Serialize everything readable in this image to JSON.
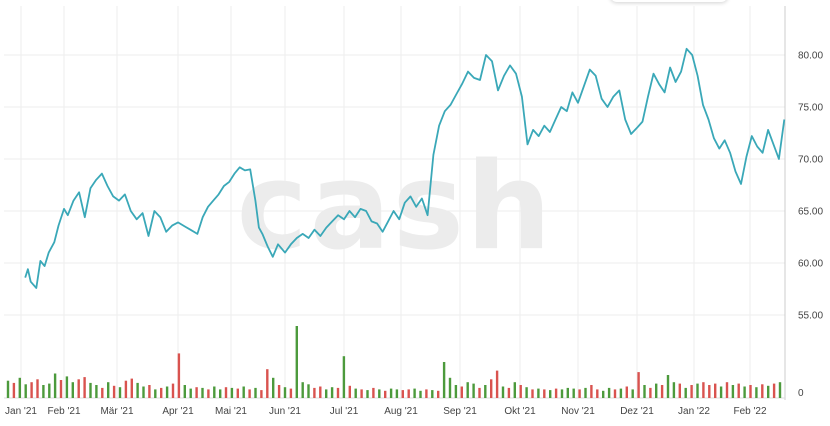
{
  "watermark": "cash",
  "chart_data": [
    {
      "type": "line",
      "x_axis": {
        "ticks": [
          "Jan '21",
          "Feb '21",
          "Mär '21",
          "Apr '21",
          "Mai '21",
          "Jun '21",
          "Jul '21",
          "Aug '21",
          "Sep '21",
          "Okt '21",
          "Nov '21",
          "Dez '21",
          "Jan '22",
          "Feb '22"
        ]
      },
      "y_axis": {
        "ticks": [
          "55.00",
          "60.00",
          "65.00",
          "70.00",
          "75.00",
          "80.00"
        ],
        "ylim": [
          52,
          83
        ],
        "position": "right"
      },
      "grid": true,
      "series": [
        {
          "color": "#3aa8b8",
          "points": [
            [
              "2021-01-04",
              58.6
            ],
            [
              "2021-01-06",
              59.4
            ],
            [
              "2021-01-08",
              58.2
            ],
            [
              "2021-01-12",
              57.6
            ],
            [
              "2021-01-15",
              60.2
            ],
            [
              "2021-01-18",
              59.7
            ],
            [
              "2021-01-21",
              61.0
            ],
            [
              "2021-01-25",
              62.0
            ],
            [
              "2021-01-28",
              63.6
            ],
            [
              "2021-02-01",
              65.2
            ],
            [
              "2021-02-03",
              64.6
            ],
            [
              "2021-02-06",
              66.0
            ],
            [
              "2021-02-09",
              66.8
            ],
            [
              "2021-02-12",
              64.4
            ],
            [
              "2021-02-15",
              67.2
            ],
            [
              "2021-02-18",
              68.0
            ],
            [
              "2021-02-21",
              68.6
            ],
            [
              "2021-02-24",
              67.4
            ],
            [
              "2021-02-27",
              66.4
            ],
            [
              "2021-03-02",
              66.0
            ],
            [
              "2021-03-05",
              66.6
            ],
            [
              "2021-03-08",
              65.0
            ],
            [
              "2021-03-11",
              64.2
            ],
            [
              "2021-03-14",
              64.8
            ],
            [
              "2021-03-17",
              62.6
            ],
            [
              "2021-03-20",
              65.0
            ],
            [
              "2021-03-23",
              64.4
            ],
            [
              "2021-03-26",
              63.0
            ],
            [
              "2021-03-29",
              63.6
            ],
            [
              "2021-04-01",
              63.9
            ],
            [
              "2021-04-05",
              63.5
            ],
            [
              "2021-04-08",
              63.2
            ],
            [
              "2021-04-12",
              62.8
            ],
            [
              "2021-04-15",
              64.4
            ],
            [
              "2021-04-18",
              65.4
            ],
            [
              "2021-04-21",
              66.0
            ],
            [
              "2021-04-24",
              66.6
            ],
            [
              "2021-04-27",
              67.4
            ],
            [
              "2021-04-30",
              67.8
            ],
            [
              "2021-05-03",
              68.6
            ],
            [
              "2021-05-06",
              69.2
            ],
            [
              "2021-05-09",
              68.9
            ],
            [
              "2021-05-12",
              69.0
            ],
            [
              "2021-05-15",
              66.0
            ],
            [
              "2021-05-17",
              63.4
            ],
            [
              "2021-05-19",
              62.8
            ],
            [
              "2021-05-22",
              61.6
            ],
            [
              "2021-05-25",
              60.6
            ],
            [
              "2021-05-28",
              61.8
            ],
            [
              "2021-06-01",
              61.0
            ],
            [
              "2021-06-04",
              61.8
            ],
            [
              "2021-06-07",
              62.4
            ],
            [
              "2021-06-10",
              62.8
            ],
            [
              "2021-06-13",
              62.4
            ],
            [
              "2021-06-16",
              63.2
            ],
            [
              "2021-06-19",
              62.6
            ],
            [
              "2021-06-22",
              63.4
            ],
            [
              "2021-06-25",
              64.0
            ],
            [
              "2021-06-28",
              64.6
            ],
            [
              "2021-07-01",
              64.2
            ],
            [
              "2021-07-04",
              65.0
            ],
            [
              "2021-07-07",
              64.4
            ],
            [
              "2021-07-10",
              65.2
            ],
            [
              "2021-07-13",
              65.0
            ],
            [
              "2021-07-16",
              64.0
            ],
            [
              "2021-07-19",
              63.8
            ],
            [
              "2021-07-22",
              63.0
            ],
            [
              "2021-07-25",
              64.0
            ],
            [
              "2021-07-28",
              65.0
            ],
            [
              "2021-07-31",
              64.2
            ],
            [
              "2021-08-03",
              65.8
            ],
            [
              "2021-08-06",
              66.4
            ],
            [
              "2021-08-09",
              65.4
            ],
            [
              "2021-08-12",
              66.2
            ],
            [
              "2021-08-15",
              64.6
            ],
            [
              "2021-08-18",
              70.4
            ],
            [
              "2021-08-21",
              73.2
            ],
            [
              "2021-08-24",
              74.6
            ],
            [
              "2021-08-27",
              75.2
            ],
            [
              "2021-08-30",
              76.2
            ],
            [
              "2021-09-02",
              77.2
            ],
            [
              "2021-09-05",
              78.4
            ],
            [
              "2021-09-08",
              77.8
            ],
            [
              "2021-09-11",
              77.6
            ],
            [
              "2021-09-14",
              80.0
            ],
            [
              "2021-09-17",
              79.4
            ],
            [
              "2021-09-20",
              76.6
            ],
            [
              "2021-09-23",
              78.0
            ],
            [
              "2021-09-26",
              79.0
            ],
            [
              "2021-09-29",
              78.2
            ],
            [
              "2021-10-02",
              76.0
            ],
            [
              "2021-10-05",
              71.4
            ],
            [
              "2021-10-08",
              72.8
            ],
            [
              "2021-10-11",
              72.2
            ],
            [
              "2021-10-14",
              73.2
            ],
            [
              "2021-10-17",
              72.6
            ],
            [
              "2021-10-20",
              73.8
            ],
            [
              "2021-10-23",
              75.0
            ],
            [
              "2021-10-26",
              74.6
            ],
            [
              "2021-10-29",
              76.4
            ],
            [
              "2021-11-01",
              75.4
            ],
            [
              "2021-11-04",
              77.0
            ],
            [
              "2021-11-07",
              78.6
            ],
            [
              "2021-11-10",
              78.0
            ],
            [
              "2021-11-13",
              75.8
            ],
            [
              "2021-11-16",
              75.0
            ],
            [
              "2021-11-19",
              76.0
            ],
            [
              "2021-11-22",
              76.6
            ],
            [
              "2021-11-25",
              73.8
            ],
            [
              "2021-11-28",
              72.4
            ],
            [
              "2021-12-01",
              73.0
            ],
            [
              "2021-12-04",
              73.6
            ],
            [
              "2021-12-07",
              76.0
            ],
            [
              "2021-12-10",
              78.2
            ],
            [
              "2021-12-13",
              77.2
            ],
            [
              "2021-12-16",
              76.4
            ],
            [
              "2021-12-19",
              78.8
            ],
            [
              "2021-12-22",
              77.4
            ],
            [
              "2021-12-25",
              78.4
            ],
            [
              "2021-12-28",
              80.6
            ],
            [
              "2021-12-31",
              80.0
            ],
            [
              "2022-01-03",
              78.0
            ],
            [
              "2022-01-06",
              75.2
            ],
            [
              "2022-01-09",
              73.8
            ],
            [
              "2022-01-12",
              72.0
            ],
            [
              "2022-01-15",
              71.0
            ],
            [
              "2022-01-18",
              71.8
            ],
            [
              "2022-01-21",
              70.6
            ],
            [
              "2022-01-24",
              68.8
            ],
            [
              "2022-01-27",
              67.6
            ],
            [
              "2022-01-30",
              70.2
            ],
            [
              "2022-02-02",
              72.2
            ],
            [
              "2022-02-05",
              71.2
            ],
            [
              "2022-02-08",
              70.6
            ],
            [
              "2022-02-11",
              72.8
            ],
            [
              "2022-02-14",
              71.4
            ],
            [
              "2022-02-17",
              70.0
            ],
            [
              "2022-02-20",
              73.8
            ]
          ]
        }
      ]
    },
    {
      "type": "bar",
      "y_axis": {
        "ticks": [
          "0"
        ],
        "position": "right"
      },
      "colors": {
        "up": "#4c9a3c",
        "down": "#d9534f"
      },
      "values": [
        [
          0.24,
          "up"
        ],
        [
          0.21,
          "down"
        ],
        [
          0.28,
          "up"
        ],
        [
          0.19,
          "up"
        ],
        [
          0.22,
          "down"
        ],
        [
          0.26,
          "down"
        ],
        [
          0.18,
          "up"
        ],
        [
          0.2,
          "up"
        ],
        [
          0.34,
          "up"
        ],
        [
          0.25,
          "down"
        ],
        [
          0.3,
          "up"
        ],
        [
          0.22,
          "up"
        ],
        [
          0.26,
          "down"
        ],
        [
          0.29,
          "down"
        ],
        [
          0.21,
          "up"
        ],
        [
          0.18,
          "up"
        ],
        [
          0.14,
          "down"
        ],
        [
          0.22,
          "up"
        ],
        [
          0.17,
          "down"
        ],
        [
          0.15,
          "up"
        ],
        [
          0.24,
          "down"
        ],
        [
          0.27,
          "down"
        ],
        [
          0.21,
          "up"
        ],
        [
          0.16,
          "up"
        ],
        [
          0.18,
          "down"
        ],
        [
          0.12,
          "up"
        ],
        [
          0.14,
          "down"
        ],
        [
          0.16,
          "up"
        ],
        [
          0.2,
          "down"
        ],
        [
          0.62,
          "down"
        ],
        [
          0.18,
          "up"
        ],
        [
          0.13,
          "up"
        ],
        [
          0.15,
          "down"
        ],
        [
          0.14,
          "up"
        ],
        [
          0.12,
          "down"
        ],
        [
          0.16,
          "up"
        ],
        [
          0.12,
          "up"
        ],
        [
          0.15,
          "down"
        ],
        [
          0.14,
          "up"
        ],
        [
          0.13,
          "down"
        ],
        [
          0.16,
          "up"
        ],
        [
          0.12,
          "down"
        ],
        [
          0.14,
          "up"
        ],
        [
          0.11,
          "down"
        ],
        [
          0.4,
          "down"
        ],
        [
          0.28,
          "up"
        ],
        [
          0.18,
          "down"
        ],
        [
          0.15,
          "up"
        ],
        [
          0.13,
          "down"
        ],
        [
          1.0,
          "up"
        ],
        [
          0.22,
          "up"
        ],
        [
          0.19,
          "up"
        ],
        [
          0.14,
          "down"
        ],
        [
          0.16,
          "down"
        ],
        [
          0.12,
          "up"
        ],
        [
          0.15,
          "up"
        ],
        [
          0.14,
          "down"
        ],
        [
          0.58,
          "up"
        ],
        [
          0.17,
          "down"
        ],
        [
          0.13,
          "up"
        ],
        [
          0.12,
          "down"
        ],
        [
          0.11,
          "up"
        ],
        [
          0.14,
          "down"
        ],
        [
          0.12,
          "up"
        ],
        [
          0.1,
          "down"
        ],
        [
          0.13,
          "up"
        ],
        [
          0.12,
          "up"
        ],
        [
          0.11,
          "down"
        ],
        [
          0.12,
          "down"
        ],
        [
          0.13,
          "up"
        ],
        [
          0.1,
          "up"
        ],
        [
          0.12,
          "down"
        ],
        [
          0.11,
          "up"
        ],
        [
          0.1,
          "down"
        ],
        [
          0.5,
          "up"
        ],
        [
          0.28,
          "up"
        ],
        [
          0.18,
          "up"
        ],
        [
          0.16,
          "down"
        ],
        [
          0.22,
          "up"
        ],
        [
          0.2,
          "up"
        ],
        [
          0.14,
          "down"
        ],
        [
          0.18,
          "up"
        ],
        [
          0.26,
          "down"
        ],
        [
          0.38,
          "down"
        ],
        [
          0.16,
          "up"
        ],
        [
          0.14,
          "down"
        ],
        [
          0.22,
          "up"
        ],
        [
          0.18,
          "down"
        ],
        [
          0.15,
          "up"
        ],
        [
          0.12,
          "down"
        ],
        [
          0.13,
          "up"
        ],
        [
          0.12,
          "down"
        ],
        [
          0.11,
          "up"
        ],
        [
          0.13,
          "down"
        ],
        [
          0.12,
          "up"
        ],
        [
          0.14,
          "up"
        ],
        [
          0.13,
          "up"
        ],
        [
          0.12,
          "down"
        ],
        [
          0.14,
          "up"
        ],
        [
          0.18,
          "down"
        ],
        [
          0.12,
          "down"
        ],
        [
          0.1,
          "up"
        ],
        [
          0.14,
          "up"
        ],
        [
          0.12,
          "down"
        ],
        [
          0.13,
          "up"
        ],
        [
          0.16,
          "down"
        ],
        [
          0.12,
          "up"
        ],
        [
          0.36,
          "down"
        ],
        [
          0.18,
          "up"
        ],
        [
          0.14,
          "down"
        ],
        [
          0.2,
          "up"
        ],
        [
          0.18,
          "down"
        ],
        [
          0.32,
          "up"
        ],
        [
          0.22,
          "up"
        ],
        [
          0.2,
          "down"
        ],
        [
          0.14,
          "up"
        ],
        [
          0.18,
          "down"
        ],
        [
          0.2,
          "up"
        ],
        [
          0.22,
          "down"
        ],
        [
          0.18,
          "down"
        ],
        [
          0.2,
          "down"
        ],
        [
          0.16,
          "up"
        ],
        [
          0.22,
          "down"
        ],
        [
          0.18,
          "up"
        ],
        [
          0.2,
          "down"
        ],
        [
          0.16,
          "up"
        ],
        [
          0.18,
          "down"
        ],
        [
          0.15,
          "up"
        ],
        [
          0.19,
          "down"
        ],
        [
          0.17,
          "up"
        ],
        [
          0.2,
          "down"
        ],
        [
          0.22,
          "up"
        ]
      ]
    }
  ]
}
